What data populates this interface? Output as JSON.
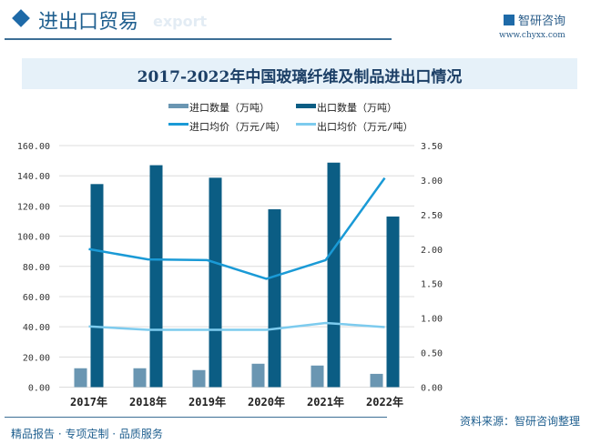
{
  "header": {
    "title": "进出口贸易",
    "subtitle": "export",
    "brand": "智研咨询",
    "url": "www.chyxx.com"
  },
  "footer": {
    "slogan": "精品报告 · 专项定制 · 品质服务",
    "source": "资料来源：智研咨询整理"
  },
  "colors": {
    "import_qty": "#6a96b2",
    "export_qty": "#0b5d84",
    "import_price": "#1a9ad6",
    "export_price": "#7dcbee"
  },
  "chart_data": {
    "type": "bar+line",
    "title": "2017-2022年中国玻璃纤维及制品进出口情况",
    "categories": [
      "2017年",
      "2018年",
      "2019年",
      "2020年",
      "2021年",
      "2022年"
    ],
    "y_left": {
      "range": [
        0,
        160
      ],
      "ticks": [
        "0.00",
        "20.00",
        "40.00",
        "60.00",
        "80.00",
        "100.00",
        "120.00",
        "140.00",
        "160.00"
      ]
    },
    "y_right": {
      "range": [
        0,
        3.5
      ],
      "ticks": [
        "0.00",
        "0.50",
        "1.00",
        "1.50",
        "2.00",
        "2.50",
        "3.00",
        "3.50"
      ]
    },
    "grid": true,
    "legend": "top",
    "series": [
      {
        "name": "进口数量（万吨）",
        "type": "bar",
        "axis": "left",
        "values": [
          12.5,
          12.5,
          11.3,
          15.5,
          14.3,
          8.8
        ]
      },
      {
        "name": "出口数量（万吨）",
        "type": "bar",
        "axis": "left",
        "values": [
          134.5,
          147,
          138.7,
          117.8,
          148.7,
          113
        ]
      },
      {
        "name": "进口均价（万元/吨）",
        "type": "line",
        "axis": "right",
        "values": [
          2.0,
          1.85,
          1.84,
          1.57,
          1.84,
          3.03
        ]
      },
      {
        "name": "出口均价（万元/吨）",
        "type": "line",
        "axis": "right",
        "values": [
          0.88,
          0.83,
          0.83,
          0.83,
          0.93,
          0.87
        ]
      }
    ]
  }
}
